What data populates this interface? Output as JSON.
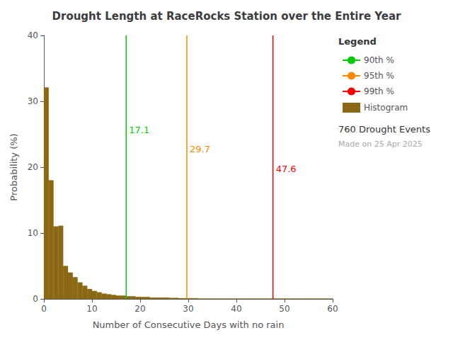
{
  "chart_data": {
    "type": "histogram",
    "title": "Drought Length at RaceRocks Station over the Entire Year",
    "xlabel": "Number of Consecutive Days with no rain",
    "ylabel": "Probability (%)",
    "bins": [
      0,
      1,
      2,
      3,
      4,
      5,
      6,
      7,
      8,
      9,
      10,
      11,
      12,
      13,
      14,
      15,
      16,
      17,
      18,
      19,
      20,
      21,
      22,
      23,
      24,
      25,
      26,
      27,
      28,
      29,
      30,
      31,
      32,
      33,
      34,
      35,
      36,
      37,
      38,
      39,
      40,
      41,
      42,
      43,
      44,
      45,
      46,
      47,
      48,
      49,
      50,
      51,
      52,
      53,
      54,
      55,
      56,
      57,
      58,
      59,
      60
    ],
    "series": [
      {
        "name": "90th %",
        "type": "vline",
        "color": "#00cc00",
        "x": 17.1,
        "data_labels": true
      },
      {
        "name": "95th %",
        "type": "vline",
        "color": "#ff8800",
        "x": 29.7,
        "data_labels": true
      },
      {
        "name": "99th %",
        "type": "vline",
        "color": "#ff0000",
        "x": 47.6,
        "data_labels": true
      },
      {
        "name": "Histogram",
        "type": "histogram",
        "color": "#8B6914",
        "values": [
          32.1,
          18.0,
          11.0,
          11.1,
          5.0,
          4.0,
          3.3,
          2.5,
          2.0,
          1.5,
          1.2,
          1.0,
          0.8,
          0.7,
          0.6,
          0.5,
          0.5,
          0.4,
          0.4,
          0.3,
          0.3,
          0.3,
          0.2,
          0.2,
          0.2,
          0.2,
          0.15,
          0.15,
          0.1,
          0.1,
          0.1,
          0.1,
          0.05,
          0.05,
          0.05,
          0.05,
          0.05,
          0.05,
          0.05,
          0.05,
          0.05,
          0.05,
          0.05,
          0.05,
          0.05,
          0.05,
          0.05,
          0.05,
          0.05,
          0.05,
          0.05,
          0.05,
          0.05,
          0.05,
          0.05,
          0.05,
          0.05,
          0.05,
          0.05,
          0.05
        ]
      }
    ],
    "legend": "upper right",
    "legend_title": "Legend",
    "annotations": [
      {
        "text": "760 Drought Events"
      },
      {
        "text": "Made on 25 Apr 2025",
        "color": "#aaaaaa"
      }
    ],
    "xlim": [
      0,
      60
    ],
    "ylim": [
      0,
      40
    ],
    "xticks": [
      0,
      10,
      20,
      30,
      40,
      50,
      60
    ],
    "yticks": [
      0,
      10,
      20,
      30,
      40
    ],
    "grid": false
  }
}
